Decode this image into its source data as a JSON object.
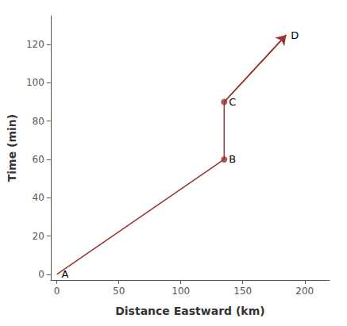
{
  "chart_data": {
    "type": "line",
    "xlabel": "Distance Eastward (km)",
    "ylabel": "Time (min)",
    "xlim": [
      -5,
      220
    ],
    "ylim": [
      -3,
      135
    ],
    "xticks": [
      0,
      50,
      100,
      150,
      200
    ],
    "yticks": [
      0,
      20,
      40,
      60,
      80,
      100,
      120
    ],
    "grid": false,
    "series": [
      {
        "type": "line",
        "color": "#993333",
        "x": [
          0,
          135,
          135,
          185
        ],
        "values": [
          0,
          60,
          90,
          125
        ],
        "annotations": [
          "A",
          "B",
          "C",
          "D"
        ],
        "marker": "arrow",
        "line_style": "solid"
      },
      {
        "type": "scatter",
        "color": "#993333",
        "x": [
          135,
          135
        ],
        "values": [
          60,
          90
        ],
        "marker": "circle"
      }
    ]
  }
}
